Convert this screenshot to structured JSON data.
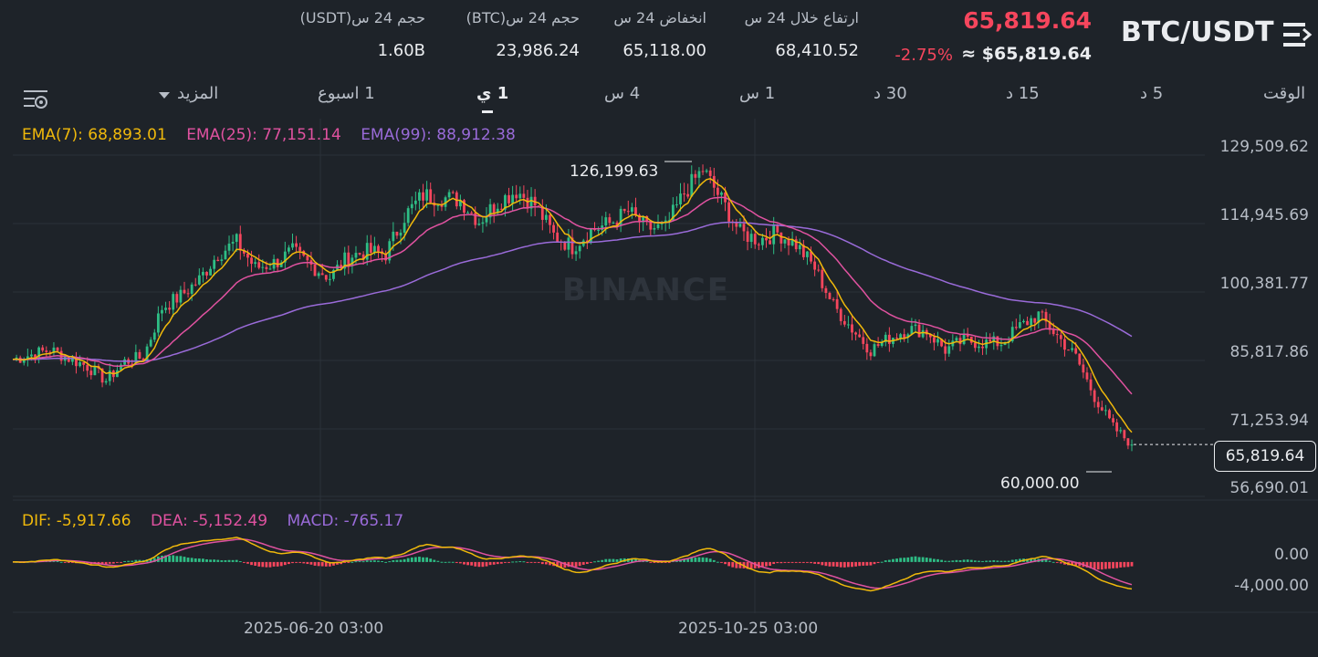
{
  "header": {
    "pair": "BTC/USDT",
    "last_price": "65,819.64",
    "usd_price": "≈ $65,819.64",
    "change_pct": "-2.75%",
    "stats": [
      {
        "label": "ارتفاع خلال 24 س",
        "value": "68,410.52"
      },
      {
        "label": "انخفاض 24 س",
        "value": "65,118.00"
      },
      {
        "label": "حجم 24 س(BTC)",
        "value": "23,986.24"
      },
      {
        "label": "حجم 24 س(USDT)",
        "value": "1.60B"
      }
    ]
  },
  "intervals": {
    "time": "الوقت",
    "m5": "5 د",
    "m15": "15 د",
    "m30": "30 د",
    "h1": "1 س",
    "h4": "4 س",
    "d1": "1 ي",
    "w1": "1 اسبوع",
    "more": "المزيد"
  },
  "ema_legend": {
    "ema7": "EMA(7): 68,893.01",
    "ema25": "EMA(25): 77,151.14",
    "ema99": "EMA(99): 88,912.38"
  },
  "macd_legend": {
    "dif": "DIF: -5,917.66",
    "dea": "DEA: -5,152.49",
    "macd": "MACD: -765.17"
  },
  "price_axis": [
    "129,509.62",
    "114,945.69",
    "100,381.77",
    "85,817.86",
    "71,253.94",
    "56,690.01"
  ],
  "macd_axis": [
    "0.00",
    "-4,000.00"
  ],
  "date_axis": [
    "2025-06-20 03:00",
    "2025-10-25 03:00"
  ],
  "current_price_tag": "65,819.64",
  "high_label": "126,199.63",
  "low_label": "60,000.00",
  "watermark": "BINANCE",
  "colors": {
    "up": "#2ebd85",
    "down": "#f6465d",
    "ema7": "#f0b90b",
    "ema25": "#e052a0",
    "ema99": "#9a6bd9",
    "bg": "#1e2329"
  },
  "chart_data": {
    "type": "candlestick",
    "close_path_points": [
      [
        0,
        84000
      ],
      [
        10,
        86000
      ],
      [
        20,
        82500
      ],
      [
        25,
        79500
      ],
      [
        30,
        83500
      ],
      [
        35,
        84500
      ],
      [
        40,
        95000
      ],
      [
        45,
        97500
      ],
      [
        50,
        101000
      ],
      [
        55,
        106500
      ],
      [
        60,
        109000
      ],
      [
        65,
        103500
      ],
      [
        70,
        104500
      ],
      [
        75,
        107000
      ],
      [
        80,
        104000
      ],
      [
        85,
        101500
      ],
      [
        90,
        106000
      ],
      [
        95,
        107000
      ],
      [
        100,
        106500
      ],
      [
        105,
        114500
      ],
      [
        110,
        119000
      ],
      [
        115,
        118500
      ],
      [
        120,
        118000
      ],
      [
        125,
        113500
      ],
      [
        130,
        117500
      ],
      [
        135,
        120000
      ],
      [
        140,
        117000
      ],
      [
        145,
        110500
      ],
      [
        150,
        108000
      ],
      [
        155,
        111500
      ],
      [
        160,
        113000
      ],
      [
        165,
        115500
      ],
      [
        170,
        112000
      ],
      [
        175,
        112000
      ],
      [
        180,
        119500
      ],
      [
        185,
        124500
      ],
      [
        190,
        118000
      ],
      [
        195,
        111000
      ],
      [
        200,
        109500
      ],
      [
        205,
        111000
      ],
      [
        210,
        108500
      ],
      [
        215,
        103500
      ],
      [
        220,
        95500
      ],
      [
        225,
        90500
      ],
      [
        230,
        86000
      ],
      [
        235,
        88500
      ],
      [
        240,
        90500
      ],
      [
        245,
        90000
      ],
      [
        250,
        86000
      ],
      [
        255,
        88000
      ],
      [
        260,
        87500
      ],
      [
        265,
        87500
      ],
      [
        270,
        91000
      ],
      [
        275,
        93500
      ],
      [
        280,
        89000
      ],
      [
        285,
        84500
      ],
      [
        290,
        76000
      ],
      [
        295,
        69500
      ],
      [
        300,
        65819.64
      ]
    ],
    "ema7_last": 68893.01,
    "ema25_last": 77151.14,
    "ema99_last": 88912.38,
    "high": 126199.63,
    "low": 60000.0,
    "ylim": [
      56690.01,
      129509.62
    ],
    "macd": {
      "dif_last": -5917.66,
      "dea_last": -5152.49,
      "macd_last": -765.17,
      "ylim": [
        -6500,
        3000
      ]
    }
  }
}
